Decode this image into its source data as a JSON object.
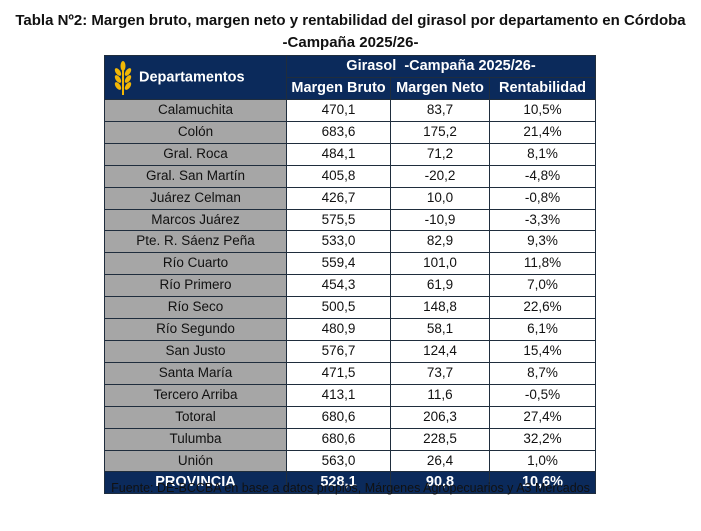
{
  "title": {
    "line1": "Tabla Nº2: Margen bruto, margen neto y rentabilidad del girasol por departamento en Córdoba",
    "line2": "-Campaña 2025/26-"
  },
  "table": {
    "header_departments": "Departamentos",
    "header_group": "Girasol  -Campaña 2025/26-",
    "col_margen_bruto": "Margen Bruto",
    "col_margen_neto": "Margen Neto",
    "col_rentabilidad": "Rentabilidad",
    "rows": [
      {
        "dep": "Calamuchita",
        "mb": "470,1",
        "mn": "83,7",
        "r": "10,5%"
      },
      {
        "dep": "Colón",
        "mb": "683,6",
        "mn": "175,2",
        "r": "21,4%"
      },
      {
        "dep": "Gral. Roca",
        "mb": "484,1",
        "mn": "71,2",
        "r": "8,1%"
      },
      {
        "dep": "Gral. San Martín",
        "mb": "405,8",
        "mn": "-20,2",
        "r": "-4,8%"
      },
      {
        "dep": "Juárez Celman",
        "mb": "426,7",
        "mn": "10,0",
        "r": "-0,8%"
      },
      {
        "dep": "Marcos Juárez",
        "mb": "575,5",
        "mn": "-10,9",
        "r": "-3,3%"
      },
      {
        "dep": "Pte. R. Sáenz Peña",
        "mb": "533,0",
        "mn": "82,9",
        "r": "9,3%"
      },
      {
        "dep": "Río Cuarto",
        "mb": "559,4",
        "mn": "101,0",
        "r": "11,8%"
      },
      {
        "dep": "Río Primero",
        "mb": "454,3",
        "mn": "61,9",
        "r": "7,0%"
      },
      {
        "dep": "Río Seco",
        "mb": "500,5",
        "mn": "148,8",
        "r": "22,6%"
      },
      {
        "dep": "Río Segundo",
        "mb": "480,9",
        "mn": "58,1",
        "r": "6,1%"
      },
      {
        "dep": "San Justo",
        "mb": "576,7",
        "mn": "124,4",
        "r": "15,4%"
      },
      {
        "dep": "Santa María",
        "mb": "471,5",
        "mn": "73,7",
        "r": "8,7%"
      },
      {
        "dep": "Tercero Arriba",
        "mb": "413,1",
        "mn": "11,6",
        "r": "-0,5%"
      },
      {
        "dep": "Totoral",
        "mb": "680,6",
        "mn": "206,3",
        "r": "27,4%"
      },
      {
        "dep": "Tulumba",
        "mb": "680,6",
        "mn": "228,5",
        "r": "32,2%"
      },
      {
        "dep": "Unión",
        "mb": "563,0",
        "mn": "26,4",
        "r": "1,0%"
      }
    ],
    "total": {
      "dep": "PROVINCIA",
      "mb": "528,1",
      "mn": "90,8",
      "r": "10,6%"
    }
  },
  "source": "Fuente: DE-BCCBA en base a datos propios, Márgenes Agropecuarios y A3 Mercados",
  "colors": {
    "header_bg": "#0b2a5b",
    "dep_bg": "#a6a6a6",
    "wheat_icon": "#f2b705"
  }
}
